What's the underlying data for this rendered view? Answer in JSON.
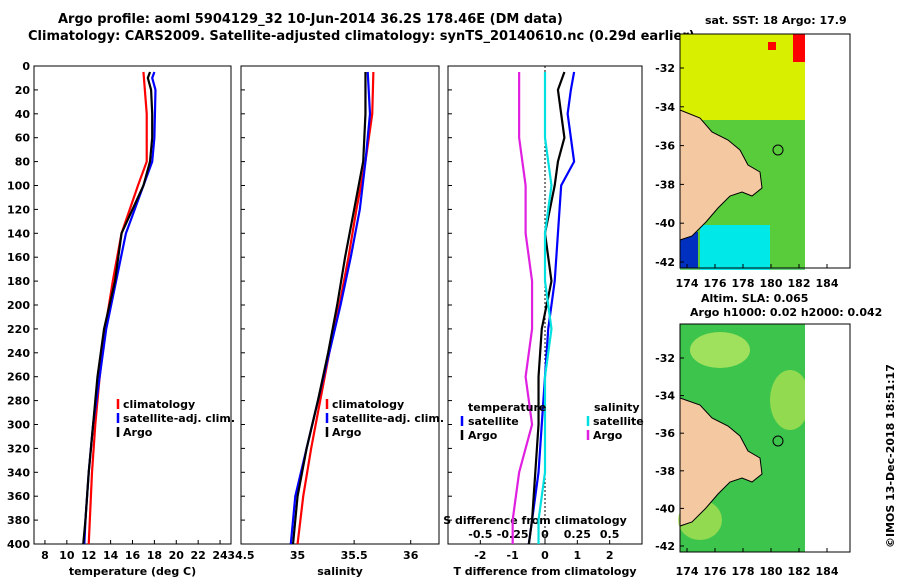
{
  "header": {
    "line1": "Argo profile: aoml 5904129_32 10-Jun-2014 36.2S 178.46E (DM data)",
    "line2": "Climatology: CARS2009. Satellite-adjusted climatology: synTS_20140610.nc (0.29d earlier)"
  },
  "maps": {
    "sst_title": "sat. SST: 18 Argo: 17.9",
    "sla_title1": "Altim. SLA: 0.065",
    "sla_title2": "Argo h1000: 0.02 h2000: 0.042",
    "lat_ticks": [
      "-32",
      "-34",
      "-36",
      "-38",
      "-40",
      "-42"
    ],
    "lon_ticks": [
      "174",
      "176",
      "178",
      "180",
      "182",
      "184"
    ],
    "colors": {
      "ocean_warm": "#d8f000",
      "ocean_green": "#2fc050",
      "land": "#f4c8a0"
    }
  },
  "credit": "©IMOS 13-Dec-2018 18:51:17",
  "chart_data": [
    {
      "type": "line",
      "panel": "temperature",
      "xlabel": "temperature (deg C)",
      "ylabel": "",
      "xlim": [
        7,
        25
      ],
      "ylim": [
        400,
        0
      ],
      "xticks": [
        "8",
        "10",
        "12",
        "14",
        "16",
        "18",
        "20",
        "22",
        "24"
      ],
      "yticks": [
        "0",
        "20",
        "40",
        "60",
        "80",
        "100",
        "120",
        "140",
        "160",
        "180",
        "200",
        "220",
        "240",
        "260",
        "280",
        "300",
        "320",
        "340",
        "360",
        "380",
        "400"
      ],
      "legend": [
        "climatology",
        "satellite-adj. clim.",
        "Argo"
      ],
      "series": [
        {
          "name": "climatology",
          "color": "#ff0000",
          "depth": [
            5,
            40,
            80,
            100,
            140,
            180,
            220,
            260,
            300,
            340,
            380,
            400
          ],
          "values": [
            17.0,
            17.3,
            17.3,
            16.5,
            15.0,
            14.2,
            13.5,
            13.0,
            12.6,
            12.3,
            12.1,
            12.0
          ]
        },
        {
          "name": "satellite-adj. clim.",
          "color": "#0000ff",
          "depth": [
            5,
            10,
            20,
            60,
            80,
            100,
            140,
            180,
            220,
            260,
            300,
            340,
            380,
            400
          ],
          "values": [
            18.0,
            17.8,
            18.1,
            18.0,
            17.8,
            17.0,
            15.4,
            14.5,
            13.6,
            13.0,
            12.4,
            12.0,
            11.7,
            11.6
          ]
        },
        {
          "name": "Argo",
          "color": "#000000",
          "depth": [
            5,
            10,
            20,
            40,
            60,
            80,
            100,
            140,
            180,
            220,
            260,
            300,
            340,
            380,
            400
          ],
          "values": [
            17.6,
            17.4,
            17.7,
            17.8,
            17.8,
            17.6,
            17.0,
            15.0,
            14.4,
            13.4,
            12.8,
            12.4,
            12.0,
            11.7,
            11.5
          ]
        }
      ]
    },
    {
      "type": "line",
      "panel": "salinity",
      "xlabel": "salinity",
      "ylabel": "",
      "xlim": [
        34.5,
        36.25
      ],
      "ylim": [
        400,
        0
      ],
      "xticks": [
        "34.5",
        "35",
        "35.5",
        "36"
      ],
      "yticks": [],
      "legend": [
        "climatology",
        "satellite-adj. clim.",
        "Argo"
      ],
      "series": [
        {
          "name": "climatology",
          "color": "#ff0000",
          "depth": [
            5,
            40,
            80,
            120,
            160,
            200,
            240,
            280,
            320,
            360,
            400
          ],
          "values": [
            35.67,
            35.66,
            35.6,
            35.52,
            35.45,
            35.37,
            35.28,
            35.2,
            35.12,
            35.05,
            35.0
          ]
        },
        {
          "name": "satellite-adj. clim.",
          "color": "#0000ff",
          "depth": [
            5,
            40,
            80,
            120,
            160,
            200,
            240,
            280,
            320,
            360,
            400
          ],
          "values": [
            35.62,
            35.64,
            35.6,
            35.55,
            35.47,
            35.38,
            35.28,
            35.18,
            35.08,
            34.98,
            34.94
          ]
        },
        {
          "name": "Argo",
          "color": "#000000",
          "depth": [
            5,
            40,
            80,
            120,
            160,
            200,
            240,
            280,
            320,
            360,
            400
          ],
          "values": [
            35.6,
            35.6,
            35.58,
            35.5,
            35.42,
            35.35,
            35.27,
            35.18,
            35.08,
            35.0,
            34.96
          ]
        }
      ]
    },
    {
      "type": "line",
      "panel": "difference",
      "xlabel": "T difference from climatology",
      "xlabel_top": "S difference from climatology",
      "ylabel": "",
      "xlim": [
        -3,
        3
      ],
      "ylim": [
        400,
        0
      ],
      "xticks": [
        "-2",
        "-1",
        "0",
        "1",
        "2"
      ],
      "sticks": [
        "-0.5",
        "-0.25",
        "0",
        "0.25",
        "0.5"
      ],
      "legend_temperature": [
        "temperature",
        "satellite",
        "Argo"
      ],
      "legend_salinity": [
        "salinity",
        "satellite",
        "Argo"
      ],
      "series": [
        {
          "name": "temperature satellite",
          "color": "#0000ff",
          "depth": [
            5,
            20,
            40,
            60,
            80,
            100,
            140,
            180,
            220,
            260,
            300,
            340,
            380,
            400
          ],
          "values": [
            0.9,
            0.8,
            0.7,
            0.8,
            0.9,
            0.5,
            0.4,
            0.3,
            0.1,
            0.0,
            -0.1,
            -0.2,
            -0.4,
            -0.5
          ]
        },
        {
          "name": "temperature Argo",
          "color": "#000000",
          "depth": [
            5,
            20,
            40,
            60,
            80,
            100,
            140,
            180,
            220,
            260,
            300,
            340,
            380,
            400
          ],
          "values": [
            0.6,
            0.4,
            0.5,
            0.6,
            0.4,
            0.3,
            0.0,
            0.2,
            -0.1,
            -0.2,
            -0.2,
            -0.3,
            -0.4,
            -0.5
          ]
        },
        {
          "name": "salinity satellite",
          "color": "#00e0e0",
          "depth": [
            5,
            60,
            100,
            140,
            180,
            220,
            260,
            300,
            340,
            380,
            400
          ],
          "values": [
            0.0,
            0.0,
            0.05,
            0.0,
            0.0,
            0.05,
            0.0,
            0.0,
            0.0,
            -0.05,
            -0.05
          ]
        },
        {
          "name": "salinity Argo",
          "color": "#e020e0",
          "depth": [
            5,
            60,
            100,
            140,
            180,
            220,
            260,
            300,
            340,
            380,
            400
          ],
          "values": [
            -0.2,
            -0.2,
            -0.15,
            -0.15,
            -0.1,
            -0.1,
            -0.15,
            -0.1,
            -0.2,
            -0.25,
            -0.25
          ]
        }
      ]
    }
  ]
}
